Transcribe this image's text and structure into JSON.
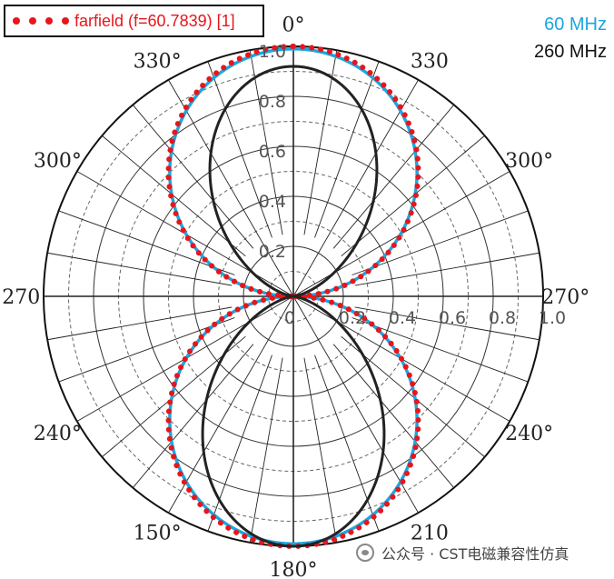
{
  "legend": {
    "label": "farfield (f=60.7839) [1]",
    "color": "#e8151c"
  },
  "frequency_labels": [
    "60 MHz",
    "260 MHz"
  ],
  "watermark": "公众号 · CST电磁兼容性仿真",
  "chart_data": {
    "type": "polar",
    "radial_range": [
      0,
      1
    ],
    "radial_ticks": [
      {
        "value": 0.2,
        "label": "0.2"
      },
      {
        "value": 0.4,
        "label": "0.4"
      },
      {
        "value": 0.6,
        "label": "0.6"
      },
      {
        "value": 0.8,
        "label": "0.8"
      },
      {
        "value": 1.0,
        "label": "1.0"
      }
    ],
    "center_label": "0",
    "angle_labels": [
      {
        "angle": 0,
        "text": "0°"
      },
      {
        "angle": 30,
        "text": "330"
      },
      {
        "angle": 60,
        "text": "300°"
      },
      {
        "angle": 90,
        "text": "270°"
      },
      {
        "angle": 120,
        "text": "240°"
      },
      {
        "angle": 150,
        "text": "210"
      },
      {
        "angle": 180,
        "text": "180°"
      },
      {
        "angle": 210,
        "text": "150°"
      },
      {
        "angle": 240,
        "text": "240°"
      },
      {
        "angle": 270,
        "text": "270"
      },
      {
        "angle": 300,
        "text": "300°"
      },
      {
        "angle": 330,
        "text": "330°"
      }
    ],
    "grid": true,
    "series": [
      {
        "name": "60 MHz",
        "color": "#1aa7e0",
        "style": "solid",
        "pattern": "sin",
        "exponent": 1.0,
        "peak": 0.99
      },
      {
        "name": "farfield (f=60.7839) [1]",
        "color": "#e8151c",
        "style": "dotted",
        "pattern": "sin",
        "exponent": 1.0,
        "peak": 1.0
      },
      {
        "name": "260 MHz",
        "color": "#222222",
        "style": "solid",
        "pattern": "sin",
        "exponent": 2.3,
        "peak": 0.92,
        "bottom_peak": 1.0
      }
    ]
  }
}
